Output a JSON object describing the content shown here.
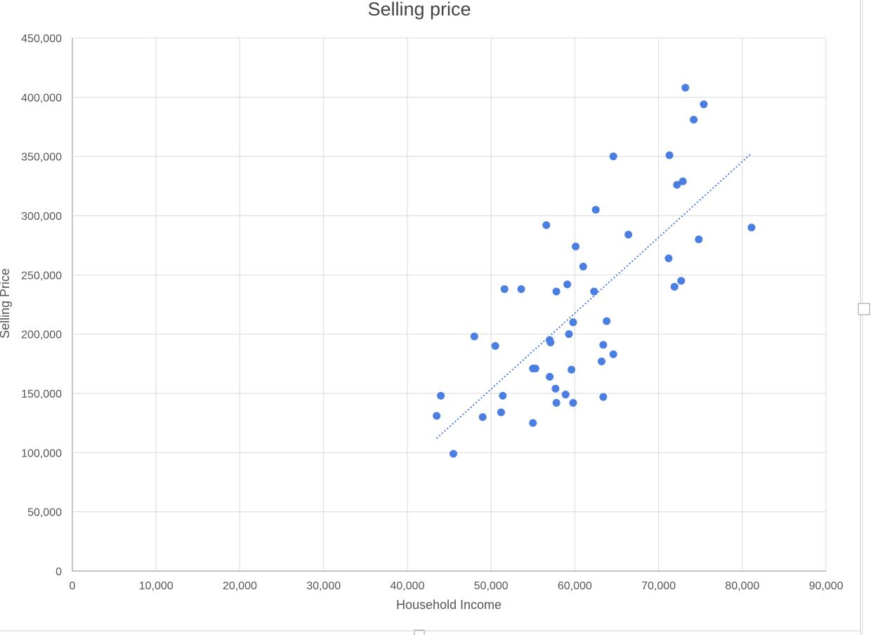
{
  "chart_data": {
    "type": "scatter",
    "title": "Selling price",
    "xlabel": "Household Income",
    "ylabel": "Selling Price",
    "xlim": [
      0,
      90000
    ],
    "ylim": [
      0,
      450000
    ],
    "x_ticks": [
      "0",
      "10,000",
      "20,000",
      "30,000",
      "40,000",
      "50,000",
      "60,000",
      "70,000",
      "80,000",
      "90,000"
    ],
    "y_ticks": [
      "0",
      "50,000",
      "100,000",
      "150,000",
      "200,000",
      "250,000",
      "300,000",
      "350,000",
      "400,000",
      "450,000"
    ],
    "grid": true,
    "legend": "none",
    "point_color": "#4a7ee0",
    "trendline": {
      "type": "linear",
      "style": "dotted",
      "x": [
        43500,
        81000
      ],
      "y": [
        112000,
        352000
      ]
    },
    "points": [
      {
        "x": 43500,
        "y": 131000
      },
      {
        "x": 44000,
        "y": 148000
      },
      {
        "x": 45500,
        "y": 99000
      },
      {
        "x": 48000,
        "y": 198000
      },
      {
        "x": 49000,
        "y": 130000
      },
      {
        "x": 50500,
        "y": 190000
      },
      {
        "x": 51200,
        "y": 134000
      },
      {
        "x": 51400,
        "y": 148000
      },
      {
        "x": 51600,
        "y": 238000
      },
      {
        "x": 53600,
        "y": 238000
      },
      {
        "x": 55000,
        "y": 125000
      },
      {
        "x": 55000,
        "y": 171000
      },
      {
        "x": 55300,
        "y": 171000
      },
      {
        "x": 56600,
        "y": 292000
      },
      {
        "x": 57000,
        "y": 195000
      },
      {
        "x": 57000,
        "y": 164000
      },
      {
        "x": 57100,
        "y": 193000
      },
      {
        "x": 57700,
        "y": 154000
      },
      {
        "x": 57800,
        "y": 236000
      },
      {
        "x": 57800,
        "y": 142000
      },
      {
        "x": 58900,
        "y": 149000
      },
      {
        "x": 59100,
        "y": 242000
      },
      {
        "x": 59300,
        "y": 200000
      },
      {
        "x": 59600,
        "y": 170000
      },
      {
        "x": 59800,
        "y": 142000
      },
      {
        "x": 59800,
        "y": 210000
      },
      {
        "x": 60100,
        "y": 274000
      },
      {
        "x": 61000,
        "y": 257000
      },
      {
        "x": 62300,
        "y": 236000
      },
      {
        "x": 62500,
        "y": 305000
      },
      {
        "x": 63200,
        "y": 177000
      },
      {
        "x": 63400,
        "y": 147000
      },
      {
        "x": 63400,
        "y": 191000
      },
      {
        "x": 63800,
        "y": 211000
      },
      {
        "x": 64600,
        "y": 183000
      },
      {
        "x": 64600,
        "y": 350000
      },
      {
        "x": 66400,
        "y": 284000
      },
      {
        "x": 71200,
        "y": 264000
      },
      {
        "x": 71300,
        "y": 351000
      },
      {
        "x": 71900,
        "y": 240000
      },
      {
        "x": 72200,
        "y": 326000
      },
      {
        "x": 72700,
        "y": 245000
      },
      {
        "x": 72900,
        "y": 329000
      },
      {
        "x": 73200,
        "y": 408000
      },
      {
        "x": 74200,
        "y": 381000
      },
      {
        "x": 74800,
        "y": 280000
      },
      {
        "x": 75400,
        "y": 394000
      },
      {
        "x": 81100,
        "y": 290000
      }
    ]
  }
}
